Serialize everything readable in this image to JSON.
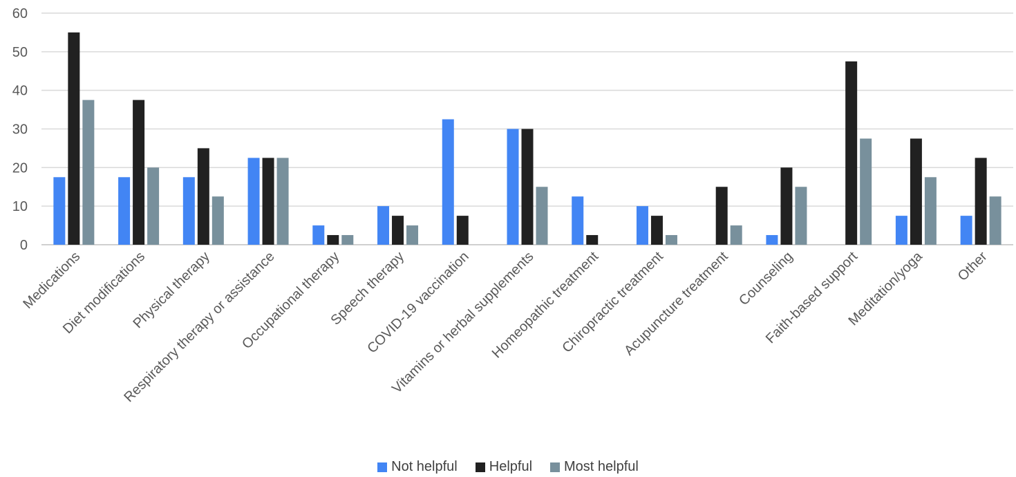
{
  "chart_data": {
    "type": "bar",
    "categories": [
      "Medications",
      "Diet modifications",
      "Physical therapy",
      "Respiratory therapy or assistance",
      "Occupational therapy",
      "Speech therapy",
      "COVID-19 vaccination",
      "Vitamins or herbal supplements",
      "Homeopathic treatment",
      "Chiropractic treatment",
      "Acupuncture treatment",
      "Counseling",
      "Faith-based support",
      "Meditation/yoga",
      "Other"
    ],
    "series": [
      {
        "name": "Not helpful",
        "color": "#4285f4",
        "values": [
          17.5,
          17.5,
          17.5,
          22.5,
          5,
          10,
          32.5,
          30,
          12.5,
          10,
          0,
          2.5,
          0,
          7.5,
          7.5
        ]
      },
      {
        "name": "Helpful",
        "color": "#212121",
        "values": [
          55,
          37.5,
          25,
          22.5,
          2.5,
          7.5,
          7.5,
          30,
          2.5,
          7.5,
          15,
          20,
          47.5,
          27.5,
          22.5
        ]
      },
      {
        "name": "Most helpful",
        "color": "#78909c",
        "values": [
          37.5,
          20,
          12.5,
          22.5,
          2.5,
          5,
          0,
          15,
          0,
          2.5,
          5,
          15,
          27.5,
          17.5,
          12.5
        ]
      }
    ],
    "ylim": [
      0,
      60
    ],
    "yticks": [
      0,
      10,
      20,
      30,
      40,
      50,
      60
    ],
    "grid": true,
    "legend_position": "bottom",
    "title": "",
    "xlabel": "",
    "ylabel": ""
  }
}
